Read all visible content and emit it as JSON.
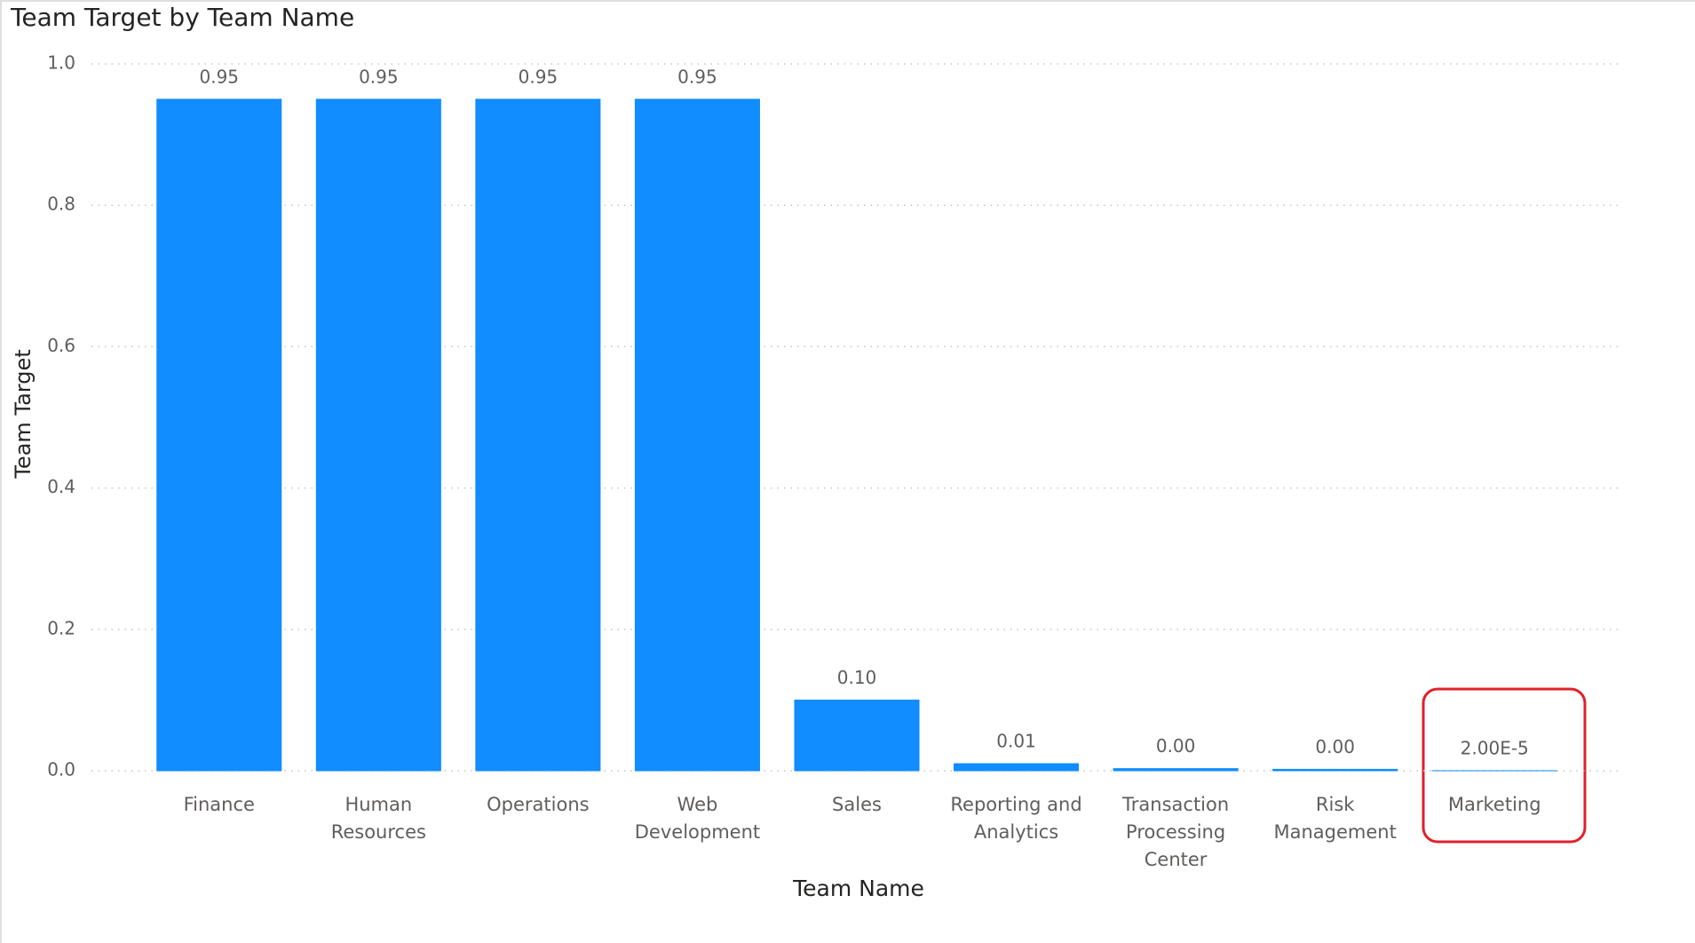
{
  "chart_data": {
    "type": "bar",
    "title": "Team Target by Team Name",
    "x_label": "Team Name",
    "y_label": "Team Target",
    "categories": [
      "Finance",
      "Human Resources",
      "Operations",
      "Web Development",
      "Sales",
      "Reporting and Analytics",
      "Transaction Processing Center",
      "Risk Management",
      "Marketing"
    ],
    "values": [
      0.95,
      0.95,
      0.95,
      0.95,
      0.1,
      0.01,
      0.003,
      0.002,
      2e-05
    ],
    "value_labels": [
      "0.95",
      "0.95",
      "0.95",
      "0.95",
      "0.10",
      "0.01",
      "0.00",
      "0.00",
      "2.00E-5"
    ],
    "color": "#118DFF",
    "ylim": [
      0,
      1
    ],
    "yticks": [
      {
        "value": 0,
        "label": "0.0"
      },
      {
        "value": 0.2,
        "label": "0.2"
      },
      {
        "value": 0.4,
        "label": "0.4"
      },
      {
        "value": 0.6,
        "label": "0.6"
      },
      {
        "value": 0.8,
        "label": "0.8"
      },
      {
        "value": 1,
        "label": "1.0"
      }
    ],
    "grid": true
  }
}
